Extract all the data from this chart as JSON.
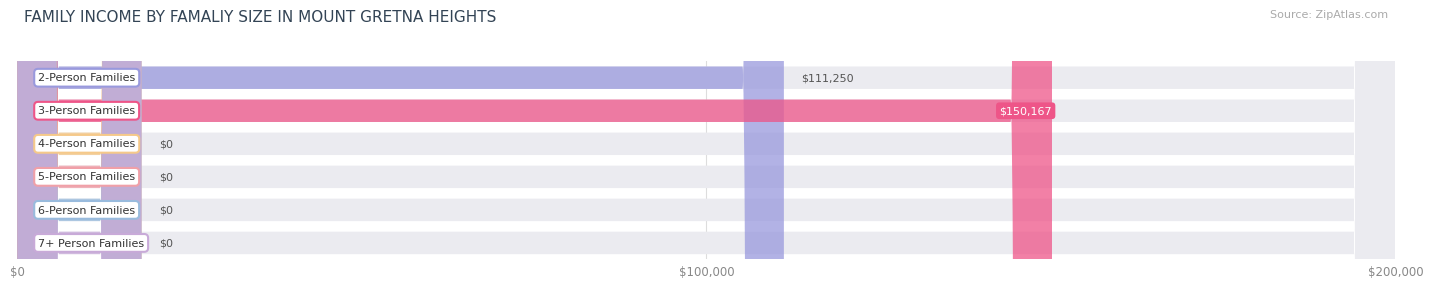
{
  "title": "FAMILY INCOME BY FAMALIY SIZE IN MOUNT GRETNA HEIGHTS",
  "source": "Source: ZipAtlas.com",
  "categories": [
    "2-Person Families",
    "3-Person Families",
    "4-Person Families",
    "5-Person Families",
    "6-Person Families",
    "7+ Person Families"
  ],
  "values": [
    111250,
    150167,
    0,
    0,
    0,
    0
  ],
  "bar_colors": [
    "#9999dd",
    "#ee5588",
    "#f5c98a",
    "#f0a0a8",
    "#99bbdd",
    "#c8aad8"
  ],
  "value_labels": [
    "$111,250",
    "$150,167",
    "$0",
    "$0",
    "$0",
    "$0"
  ],
  "xlim": [
    0,
    200000
  ],
  "xticklabels": [
    "$0",
    "$100,000",
    "$200,000"
  ],
  "bg_color": "#ffffff",
  "bar_bg_color": "#ebebf0",
  "title_fontsize": 11,
  "source_fontsize": 8,
  "label_fontsize": 8,
  "value_fontsize": 8,
  "zero_bar_width": 18000
}
